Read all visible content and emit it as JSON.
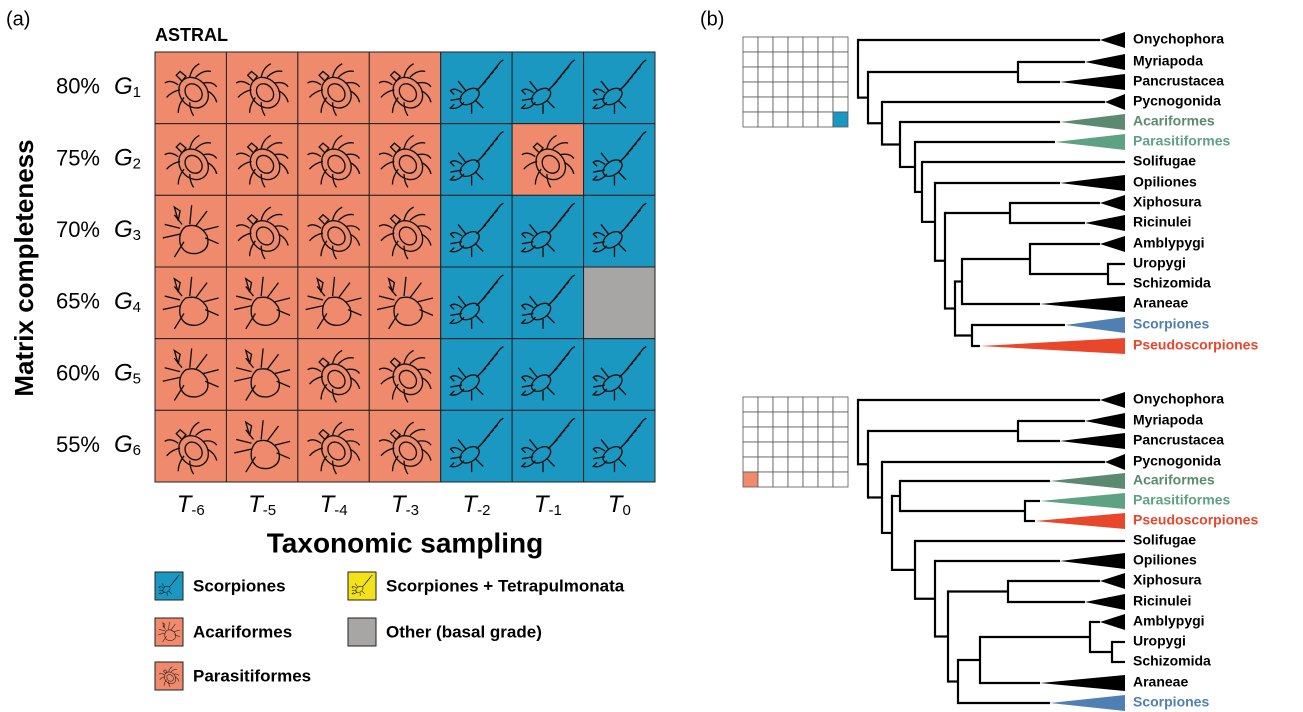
{
  "panel_a": {
    "label": "(a)",
    "title": "ASTRAL",
    "y_axis_label": "Matrix completeness",
    "x_axis_label": "Taxonomic sampling",
    "rows": [
      {
        "percent": "80%",
        "base": "G",
        "sub": "1"
      },
      {
        "percent": "75%",
        "base": "G",
        "sub": "2"
      },
      {
        "percent": "70%",
        "base": "G",
        "sub": "3"
      },
      {
        "percent": "65%",
        "base": "G",
        "sub": "4"
      },
      {
        "percent": "60%",
        "base": "G",
        "sub": "5"
      },
      {
        "percent": "55%",
        "base": "G",
        "sub": "6"
      }
    ],
    "columns": [
      {
        "base": "T",
        "sub": "-6"
      },
      {
        "base": "T",
        "sub": "-5"
      },
      {
        "base": "T",
        "sub": "-4"
      },
      {
        "base": "T",
        "sub": "-3"
      },
      {
        "base": "T",
        "sub": "-2"
      },
      {
        "base": "T",
        "sub": "-1"
      },
      {
        "base": "T",
        "sub": "0"
      }
    ],
    "cells": [
      [
        "Parasitiformes",
        "Parasitiformes",
        "Parasitiformes",
        "Parasitiformes",
        "Scorpiones",
        "Scorpiones",
        "Scorpiones"
      ],
      [
        "Parasitiformes",
        "Parasitiformes",
        "Parasitiformes",
        "Parasitiformes",
        "Scorpiones",
        "Parasitiformes",
        "Scorpiones"
      ],
      [
        "Acariformes",
        "Parasitiformes",
        "Parasitiformes",
        "Parasitiformes",
        "Scorpiones",
        "Scorpiones",
        "Scorpiones"
      ],
      [
        "Acariformes",
        "Acariformes",
        "Acariformes",
        "Acariformes",
        "Scorpiones",
        "Scorpiones",
        "Other (basal grade)"
      ],
      [
        "Acariformes",
        "Acariformes",
        "Parasitiformes",
        "Parasitiformes",
        "Scorpiones",
        "Scorpiones",
        "Scorpiones"
      ],
      [
        "Parasitiformes",
        "Acariformes",
        "Parasitiformes",
        "Parasitiformes",
        "Scorpiones",
        "Scorpiones",
        "Scorpiones"
      ]
    ],
    "legend": [
      {
        "label": "Scorpiones",
        "color": "#1a98c1"
      },
      {
        "label": "Acariformes",
        "color": "#ef8b6c"
      },
      {
        "label": "Parasitiformes",
        "color": "#ef8b6c"
      },
      {
        "label": "Scorpiones + Tetrapulmonata",
        "color": "#f3e21a"
      },
      {
        "label": "Other (basal grade)",
        "color": "#a8a5a5"
      }
    ]
  },
  "panel_b": {
    "label": "(b)",
    "trees": [
      {
        "leaves": [
          {
            "label": "Onychophora",
            "color": "#000000"
          },
          {
            "label": "Myriapoda",
            "color": "#000000"
          },
          {
            "label": "Pancrustacea",
            "color": "#000000"
          },
          {
            "label": "Pycnogonida",
            "color": "#000000"
          },
          {
            "label": "Acariformes",
            "color": "#5b8a70"
          },
          {
            "label": "Parasitiformes",
            "color": "#5fa283"
          },
          {
            "label": "Solifugae",
            "color": "#000000"
          },
          {
            "label": "Opiliones",
            "color": "#000000"
          },
          {
            "label": "Xiphosura",
            "color": "#000000"
          },
          {
            "label": "Ricinulei",
            "color": "#000000"
          },
          {
            "label": "Amblypygi",
            "color": "#000000"
          },
          {
            "label": "Uropygi",
            "color": "#000000"
          },
          {
            "label": "Schizomida",
            "color": "#000000"
          },
          {
            "label": "Araneae",
            "color": "#000000"
          },
          {
            "label": "Scorpiones",
            "color": "#4f7fb3"
          },
          {
            "label": "Pseudoscorpiones",
            "color": "#e8472b"
          }
        ]
      },
      {
        "leaves": [
          {
            "label": "Onychophora",
            "color": "#000000"
          },
          {
            "label": "Myriapoda",
            "color": "#000000"
          },
          {
            "label": "Pancrustacea",
            "color": "#000000"
          },
          {
            "label": "Pycnogonida",
            "color": "#000000"
          },
          {
            "label": "Acariformes",
            "color": "#5b8a70"
          },
          {
            "label": "Parasitiformes",
            "color": "#5fa283"
          },
          {
            "label": "Pseudoscorpiones",
            "color": "#e8472b"
          },
          {
            "label": "Solifugae",
            "color": "#000000"
          },
          {
            "label": "Opiliones",
            "color": "#000000"
          },
          {
            "label": "Xiphosura",
            "color": "#000000"
          },
          {
            "label": "Ricinulei",
            "color": "#000000"
          },
          {
            "label": "Amblypygi",
            "color": "#000000"
          },
          {
            "label": "Uropygi",
            "color": "#000000"
          },
          {
            "label": "Schizomida",
            "color": "#000000"
          },
          {
            "label": "Araneae",
            "color": "#000000"
          },
          {
            "label": "Scorpiones",
            "color": "#4f7fb3"
          }
        ]
      }
    ]
  }
}
